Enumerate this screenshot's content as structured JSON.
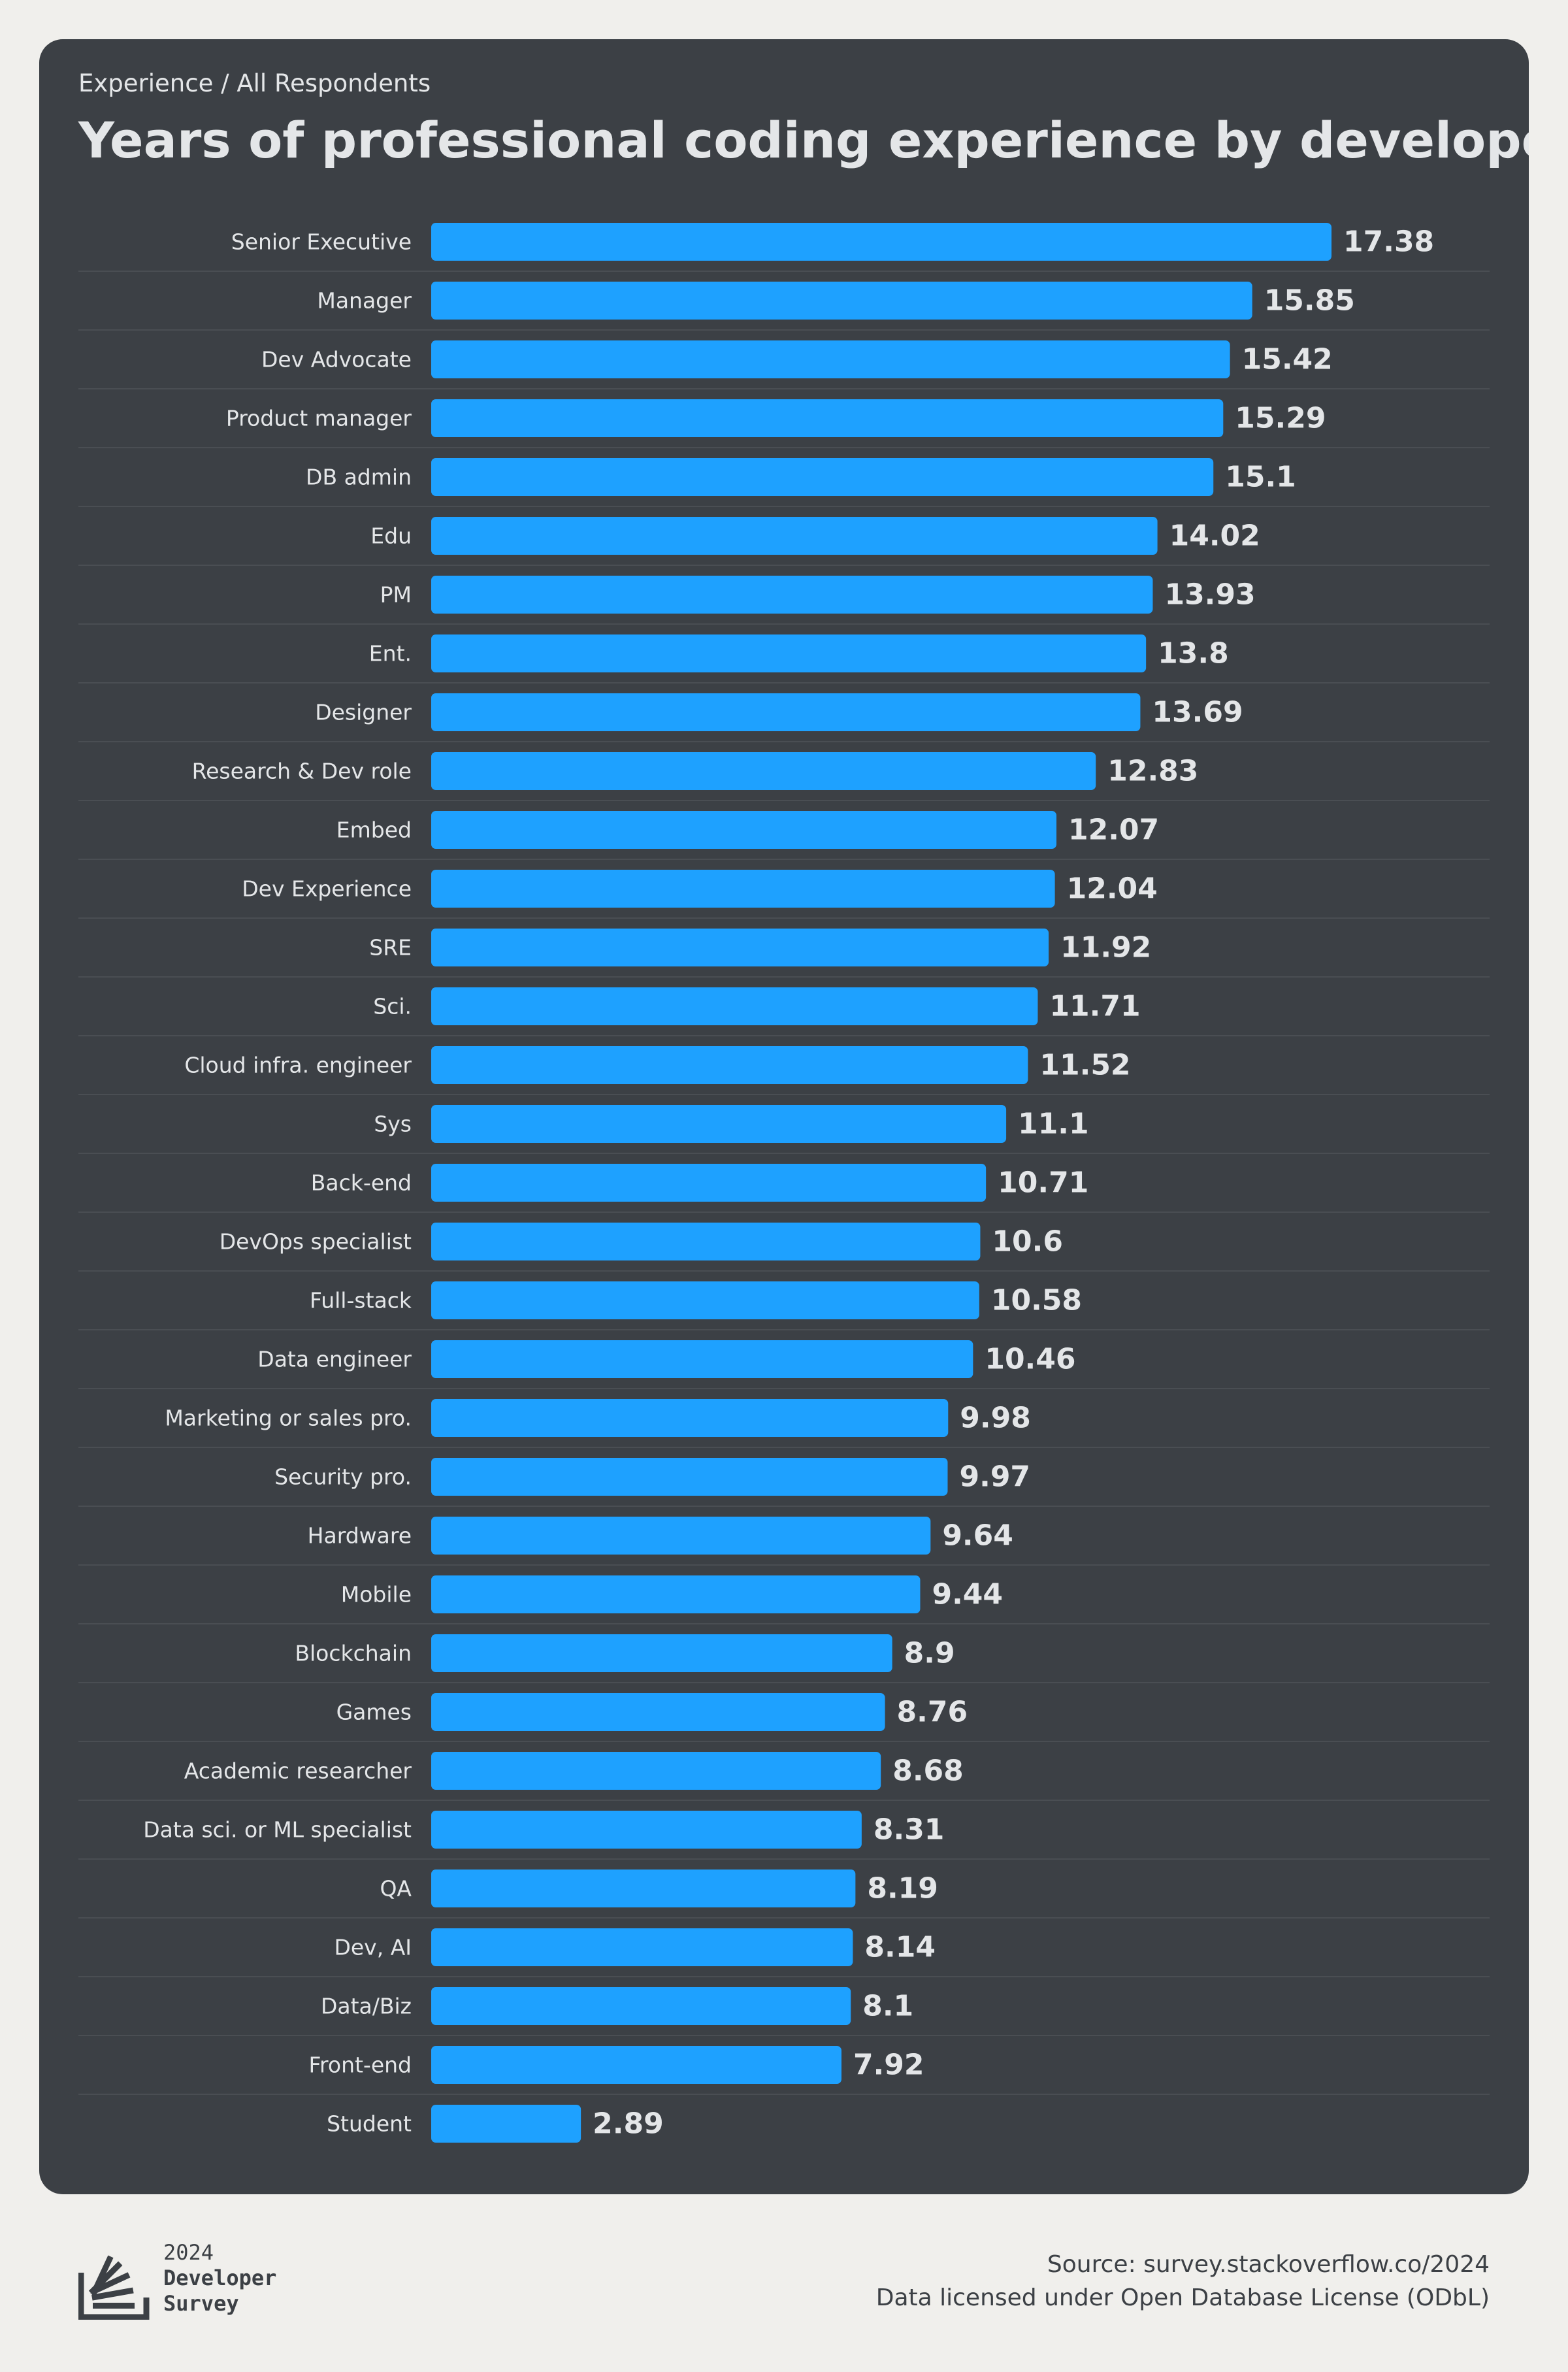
{
  "header": {
    "breadcrumb": "Experience / All Respondents",
    "title": "Years of professional coding experience by developer type"
  },
  "colors": {
    "background": "#f0efec",
    "card": "#3c4045",
    "bar": "#1ea1ff",
    "text": "#e4e6e8",
    "divider": "#4a4e53"
  },
  "chart_data": {
    "type": "bar",
    "orientation": "horizontal",
    "xlim": [
      0,
      17.38
    ],
    "grid": false,
    "categories": [
      "Senior Executive",
      "Manager",
      "Dev Advocate",
      "Product manager",
      "DB admin",
      "Edu",
      "PM",
      "Ent.",
      "Designer",
      "Research & Dev role",
      "Embed",
      "Dev Experience",
      "SRE",
      "Sci.",
      "Cloud infra. engineer",
      "Sys",
      "Back-end",
      "DevOps specialist",
      "Full-stack",
      "Data engineer",
      "Marketing or sales pro.",
      "Security pro.",
      "Hardware",
      "Mobile",
      "Blockchain",
      "Games",
      "Academic researcher",
      "Data sci. or ML specialist",
      "QA",
      "Dev, AI",
      "Data/Biz",
      "Front-end",
      "Student"
    ],
    "values": [
      17.38,
      15.85,
      15.42,
      15.29,
      15.1,
      14.02,
      13.93,
      13.8,
      13.69,
      12.83,
      12.07,
      12.04,
      11.92,
      11.71,
      11.52,
      11.1,
      10.71,
      10.6,
      10.58,
      10.46,
      9.98,
      9.97,
      9.64,
      9.44,
      8.9,
      8.76,
      8.68,
      8.31,
      8.19,
      8.14,
      8.1,
      7.92,
      2.89
    ],
    "value_labels": [
      "17.38",
      "15.85",
      "15.42",
      "15.29",
      "15.1",
      "14.02",
      "13.93",
      "13.8",
      "13.69",
      "12.83",
      "12.07",
      "12.04",
      "11.92",
      "11.71",
      "11.52",
      "11.1",
      "10.71",
      "10.6",
      "10.58",
      "10.46",
      "9.98",
      "9.97",
      "9.64",
      "9.44",
      "8.9",
      "8.76",
      "8.68",
      "8.31",
      "8.19",
      "8.14",
      "8.1",
      "7.92",
      "2.89"
    ]
  },
  "footer": {
    "logo_year": "2024",
    "logo_line1": "Developer",
    "logo_line2": "Survey",
    "logo_icon": "stack-overflow-logo-icon",
    "source": "Source: survey.stackoverflow.co/2024",
    "license": "Data licensed under Open Database License (ODbL)"
  }
}
